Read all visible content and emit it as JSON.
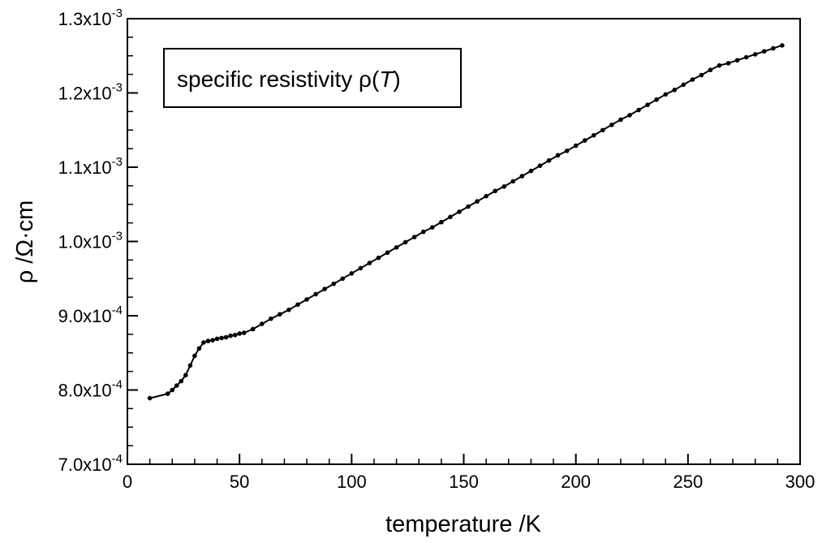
{
  "chart_data": {
    "type": "line",
    "title": "",
    "xlabel": "temperature /K",
    "ylabel": "ρ /Ω·cm",
    "xlim": [
      0,
      300
    ],
    "ylim": [
      0.0007,
      0.0013
    ],
    "grid": false,
    "legend": {
      "placement": "top-left",
      "prefix": "specific resistivity ",
      "symbol": "ρ",
      "open": "(",
      "var": "T",
      "close": ")"
    },
    "x_ticks": [
      "0",
      "50",
      "100",
      "150",
      "200",
      "250",
      "300"
    ],
    "y_ticks": [
      {
        "mantissa": "7.0x10",
        "exp": "-4"
      },
      {
        "mantissa": "8.0x10",
        "exp": "-4"
      },
      {
        "mantissa": "9.0x10",
        "exp": "-4"
      },
      {
        "mantissa": "1.0x10",
        "exp": "-3"
      },
      {
        "mantissa": "1.1x10",
        "exp": "-3"
      },
      {
        "mantissa": "1.2x10",
        "exp": "-3"
      },
      {
        "mantissa": "1.3x10",
        "exp": "-3"
      }
    ],
    "series": [
      {
        "color": "#000000",
        "x": [
          10,
          18,
          20,
          22,
          24,
          26,
          28,
          30,
          32,
          34,
          36,
          38,
          40,
          42,
          44,
          46,
          48,
          50,
          52,
          56,
          60,
          64,
          68,
          72,
          76,
          80,
          84,
          88,
          92,
          96,
          100,
          104,
          108,
          112,
          116,
          120,
          124,
          128,
          132,
          136,
          140,
          144,
          148,
          152,
          156,
          160,
          164,
          168,
          172,
          176,
          180,
          184,
          188,
          192,
          196,
          200,
          204,
          208,
          212,
          216,
          220,
          224,
          228,
          232,
          236,
          240,
          244,
          248,
          252,
          256,
          260,
          264,
          268,
          272,
          276,
          280,
          284,
          288,
          292
        ],
        "y": [
          0.000789,
          0.000795,
          0.0008,
          0.000806,
          0.000812,
          0.00082,
          0.000833,
          0.000846,
          0.000856,
          0.000864,
          0.000866,
          0.000867,
          0.000869,
          0.00087,
          0.000871,
          0.000873,
          0.000874,
          0.000876,
          0.000877,
          0.000882,
          0.000889,
          0.000896,
          0.000902,
          0.000908,
          0.000915,
          0.000922,
          0.000929,
          0.000936,
          0.000943,
          0.00095,
          0.000957,
          0.000964,
          0.000971,
          0.000978,
          0.000985,
          0.000992,
          0.000999,
          0.001006,
          0.001013,
          0.001019,
          0.001026,
          0.001033,
          0.00104,
          0.001047,
          0.001054,
          0.001061,
          0.001068,
          0.001074,
          0.001081,
          0.001088,
          0.001095,
          0.001102,
          0.001109,
          0.001116,
          0.001122,
          0.001129,
          0.001136,
          0.001143,
          0.00115,
          0.001157,
          0.001164,
          0.00117,
          0.001177,
          0.001184,
          0.001191,
          0.001198,
          0.001204,
          0.001211,
          0.001218,
          0.001224,
          0.001231,
          0.001237,
          0.00124,
          0.001244,
          0.001248,
          0.001252,
          0.001256,
          0.00126,
          0.001264
        ]
      }
    ]
  }
}
